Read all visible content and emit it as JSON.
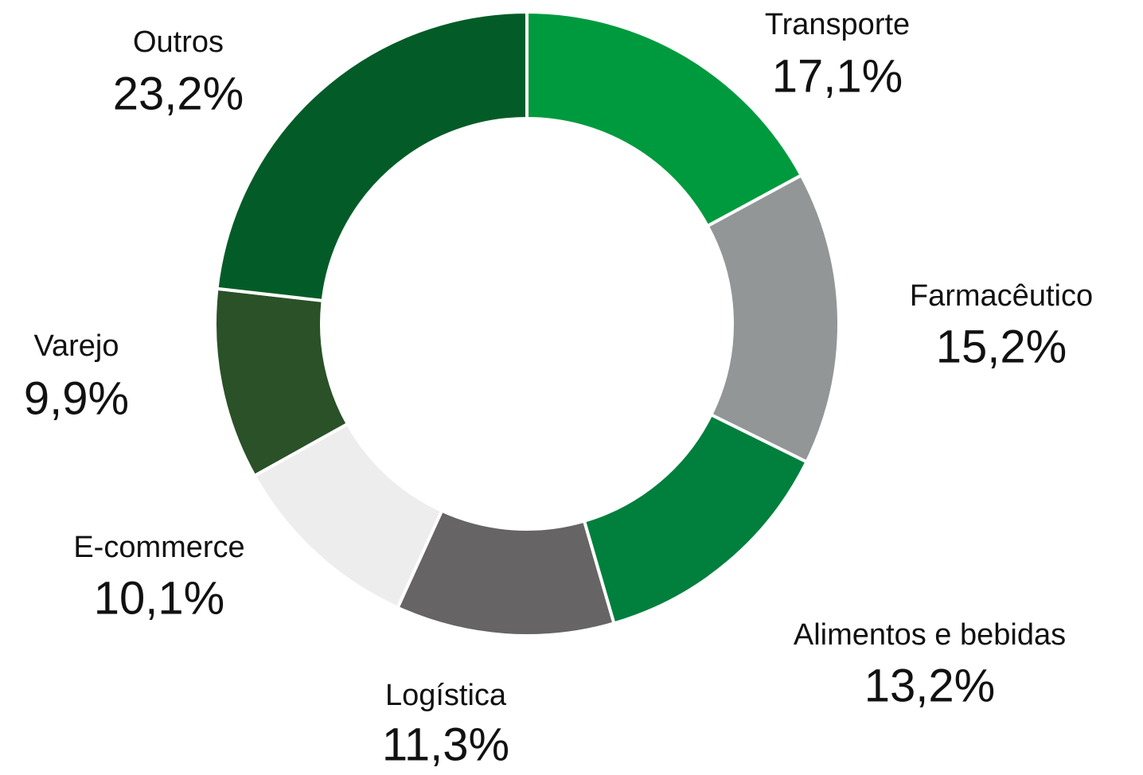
{
  "chart_data": {
    "type": "donut",
    "categories": [
      "Transporte",
      "Farmacêutico",
      "Alimentos e bebidas",
      "Logística",
      "E-commerce",
      "Varejo",
      "Outros"
    ],
    "values": [
      17.1,
      15.2,
      13.2,
      11.3,
      10.1,
      9.9,
      23.2
    ],
    "value_labels": [
      "17,1%",
      "15,2%",
      "13,2%",
      "11,3%",
      "10,1%",
      "9,9%",
      "23,2%"
    ],
    "colors": [
      "#009a3e",
      "#939696",
      "#007f3d",
      "#666465",
      "#ededed",
      "#2a5127",
      "#035c27"
    ]
  }
}
